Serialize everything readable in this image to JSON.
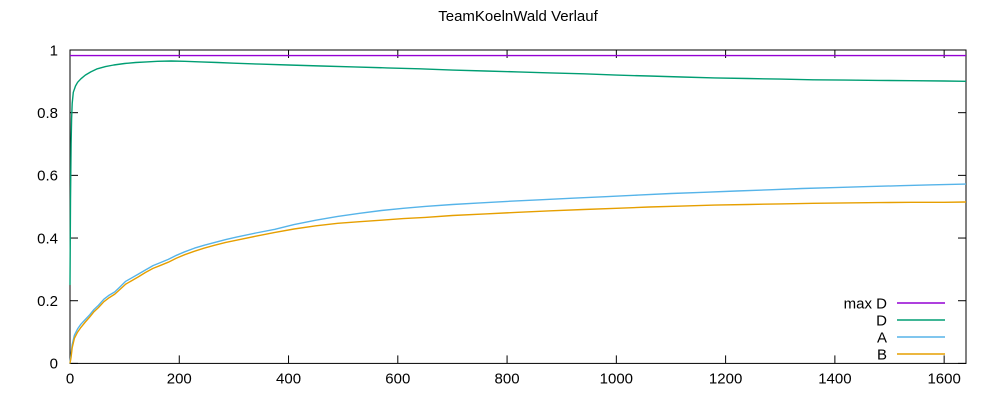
{
  "chart_data": {
    "type": "line",
    "title": "TeamKoelnWald Verlauf",
    "xlabel": "",
    "ylabel": "",
    "xlim": [
      0,
      1640
    ],
    "ylim": [
      0,
      1
    ],
    "grid": false,
    "legend_position": "bottom-right",
    "background_color": "#ffffff",
    "axis_color": "#000000",
    "xtick_values": [
      0,
      200,
      400,
      600,
      800,
      1000,
      1200,
      1400,
      1600
    ],
    "xtick_labels": [
      "0",
      "200",
      "400",
      "600",
      "800",
      "1000",
      "1200",
      "1400",
      "1600"
    ],
    "ytick_values": [
      0,
      0.2,
      0.4,
      0.6,
      0.8,
      1
    ],
    "ytick_labels": [
      "0",
      "0.2",
      "0.4",
      "0.6",
      "0.8",
      "1"
    ],
    "series": [
      {
        "name": "max D",
        "color": "#9400d3",
        "points": [
          [
            0,
            0.982
          ],
          [
            1640,
            0.982
          ]
        ]
      },
      {
        "name": "D",
        "color": "#009e73",
        "points": [
          [
            0,
            0.25
          ],
          [
            1,
            0.52
          ],
          [
            2,
            0.7
          ],
          [
            3,
            0.78
          ],
          [
            4,
            0.83
          ],
          [
            6,
            0.865
          ],
          [
            10,
            0.885
          ],
          [
            14,
            0.897
          ],
          [
            20,
            0.908
          ],
          [
            28,
            0.92
          ],
          [
            38,
            0.93
          ],
          [
            50,
            0.94
          ],
          [
            65,
            0.947
          ],
          [
            80,
            0.952
          ],
          [
            100,
            0.957
          ],
          [
            120,
            0.96
          ],
          [
            140,
            0.962
          ],
          [
            160,
            0.964
          ],
          [
            185,
            0.965
          ],
          [
            210,
            0.964
          ],
          [
            240,
            0.962
          ],
          [
            270,
            0.96
          ],
          [
            300,
            0.958
          ],
          [
            347,
            0.955
          ],
          [
            400,
            0.952
          ],
          [
            460,
            0.949
          ],
          [
            520,
            0.946
          ],
          [
            580,
            0.943
          ],
          [
            640,
            0.94
          ],
          [
            700,
            0.936
          ],
          [
            760,
            0.933
          ],
          [
            820,
            0.93
          ],
          [
            880,
            0.927
          ],
          [
            940,
            0.924
          ],
          [
            1000,
            0.92
          ],
          [
            1060,
            0.917
          ],
          [
            1120,
            0.914
          ],
          [
            1180,
            0.911
          ],
          [
            1240,
            0.909
          ],
          [
            1300,
            0.907
          ],
          [
            1360,
            0.905
          ],
          [
            1420,
            0.904
          ],
          [
            1480,
            0.903
          ],
          [
            1540,
            0.902
          ],
          [
            1600,
            0.901
          ],
          [
            1640,
            0.9
          ]
        ]
      },
      {
        "name": "A",
        "color": "#56b4e9",
        "points": [
          [
            0,
            0
          ],
          [
            2,
            0.03
          ],
          [
            4,
            0.06
          ],
          [
            8,
            0.09
          ],
          [
            14,
            0.11
          ],
          [
            20,
            0.125
          ],
          [
            28,
            0.14
          ],
          [
            36,
            0.155
          ],
          [
            44,
            0.172
          ],
          [
            52,
            0.185
          ],
          [
            62,
            0.205
          ],
          [
            72,
            0.218
          ],
          [
            82,
            0.228
          ],
          [
            92,
            0.245
          ],
          [
            102,
            0.262
          ],
          [
            112,
            0.272
          ],
          [
            125,
            0.285
          ],
          [
            138,
            0.298
          ],
          [
            152,
            0.312
          ],
          [
            166,
            0.322
          ],
          [
            180,
            0.332
          ],
          [
            195,
            0.345
          ],
          [
            210,
            0.356
          ],
          [
            228,
            0.368
          ],
          [
            246,
            0.377
          ],
          [
            265,
            0.386
          ],
          [
            285,
            0.395
          ],
          [
            305,
            0.403
          ],
          [
            340,
            0.416
          ],
          [
            375,
            0.428
          ],
          [
            410,
            0.443
          ],
          [
            450,
            0.457
          ],
          [
            490,
            0.469
          ],
          [
            530,
            0.479
          ],
          [
            570,
            0.488
          ],
          [
            610,
            0.495
          ],
          [
            650,
            0.501
          ],
          [
            700,
            0.507
          ],
          [
            750,
            0.512
          ],
          [
            800,
            0.517
          ],
          [
            860,
            0.522
          ],
          [
            920,
            0.527
          ],
          [
            980,
            0.532
          ],
          [
            1040,
            0.537
          ],
          [
            1100,
            0.542
          ],
          [
            1160,
            0.546
          ],
          [
            1220,
            0.55
          ],
          [
            1280,
            0.554
          ],
          [
            1340,
            0.558
          ],
          [
            1400,
            0.561
          ],
          [
            1460,
            0.564
          ],
          [
            1520,
            0.567
          ],
          [
            1580,
            0.57
          ],
          [
            1640,
            0.572
          ]
        ]
      },
      {
        "name": "B",
        "color": "#e69f00",
        "points": [
          [
            0,
            0
          ],
          [
            2,
            0.02
          ],
          [
            4,
            0.05
          ],
          [
            8,
            0.08
          ],
          [
            14,
            0.1
          ],
          [
            20,
            0.115
          ],
          [
            28,
            0.132
          ],
          [
            36,
            0.148
          ],
          [
            44,
            0.165
          ],
          [
            52,
            0.178
          ],
          [
            62,
            0.197
          ],
          [
            72,
            0.21
          ],
          [
            82,
            0.221
          ],
          [
            92,
            0.237
          ],
          [
            102,
            0.253
          ],
          [
            112,
            0.263
          ],
          [
            125,
            0.276
          ],
          [
            138,
            0.29
          ],
          [
            152,
            0.303
          ],
          [
            166,
            0.313
          ],
          [
            180,
            0.323
          ],
          [
            195,
            0.336
          ],
          [
            210,
            0.347
          ],
          [
            228,
            0.358
          ],
          [
            246,
            0.368
          ],
          [
            265,
            0.377
          ],
          [
            285,
            0.386
          ],
          [
            305,
            0.393
          ],
          [
            340,
            0.406
          ],
          [
            375,
            0.418
          ],
          [
            410,
            0.429
          ],
          [
            450,
            0.439
          ],
          [
            490,
            0.447
          ],
          [
            530,
            0.452
          ],
          [
            570,
            0.457
          ],
          [
            610,
            0.462
          ],
          [
            650,
            0.466
          ],
          [
            700,
            0.472
          ],
          [
            760,
            0.477
          ],
          [
            820,
            0.482
          ],
          [
            880,
            0.487
          ],
          [
            940,
            0.491
          ],
          [
            1000,
            0.495
          ],
          [
            1060,
            0.499
          ],
          [
            1120,
            0.502
          ],
          [
            1180,
            0.505
          ],
          [
            1240,
            0.507
          ],
          [
            1300,
            0.509
          ],
          [
            1360,
            0.511
          ],
          [
            1420,
            0.512
          ],
          [
            1480,
            0.513
          ],
          [
            1540,
            0.514
          ],
          [
            1600,
            0.514
          ],
          [
            1640,
            0.515
          ]
        ]
      }
    ]
  }
}
